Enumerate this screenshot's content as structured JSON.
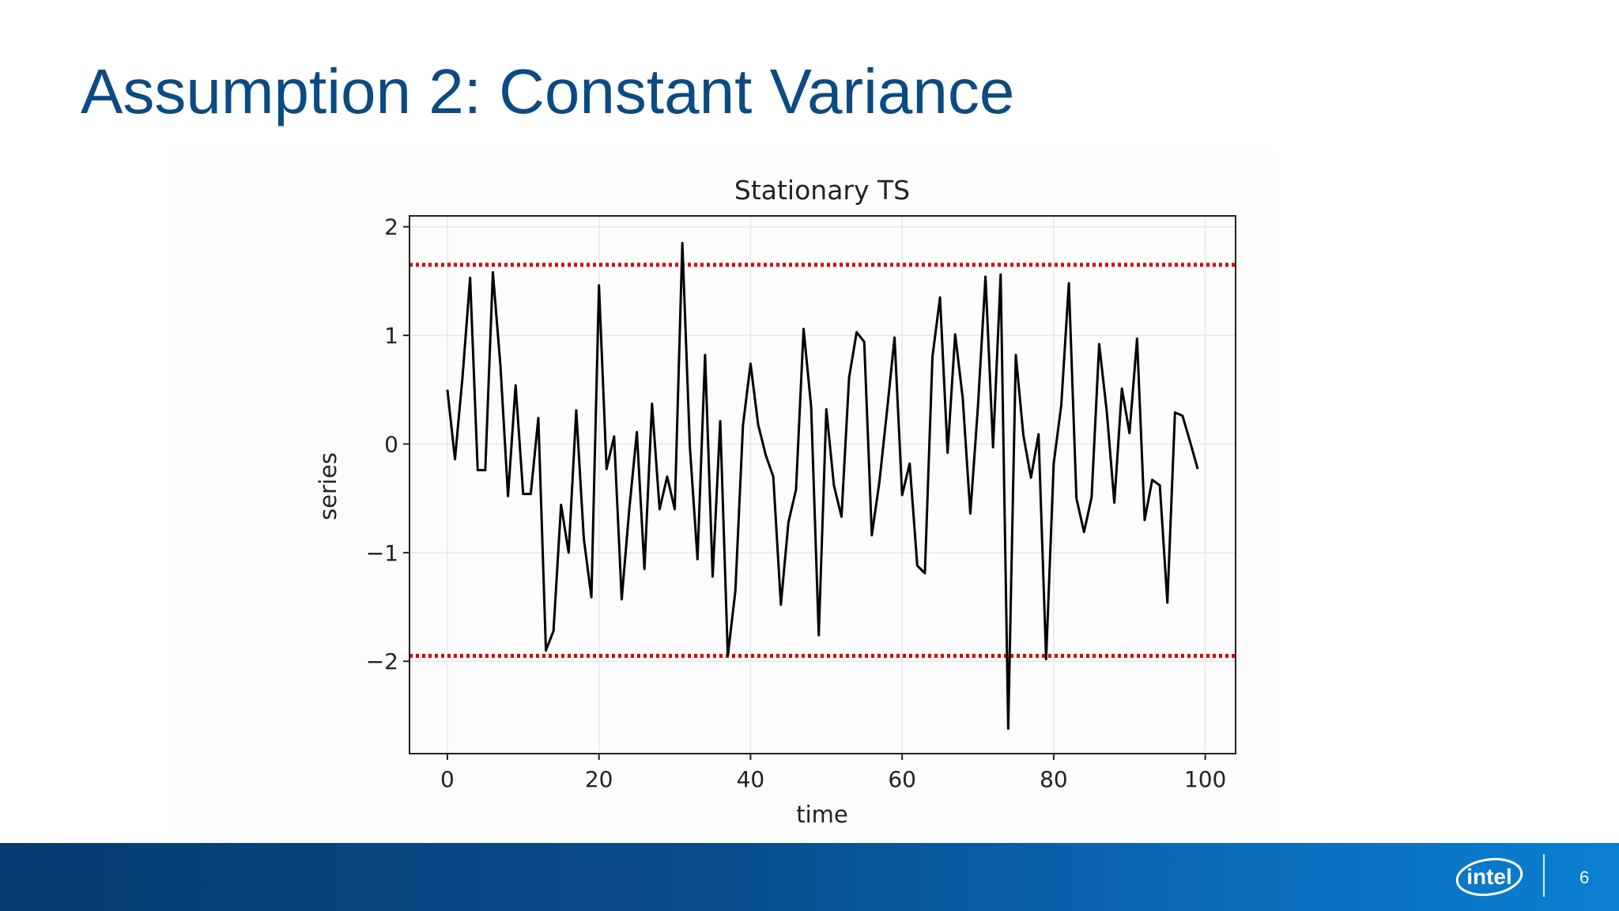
{
  "slide": {
    "title": "Assumption 2: Constant Variance",
    "page_number": "6",
    "logo_text": "intel"
  },
  "colors": {
    "title": "#0b4a82",
    "series_line": "#000000",
    "bound_lines": "#d40000",
    "footer_start": "#063a73",
    "footer_end": "#0b7fd0"
  },
  "chart_data": {
    "type": "line",
    "title": "Stationary TS",
    "xlabel": "time",
    "ylabel": "series",
    "xlim": [
      -5,
      104
    ],
    "ylim": [
      -2.85,
      2.1
    ],
    "xticks": [
      0,
      20,
      40,
      60,
      80,
      100
    ],
    "yticks": [
      2,
      1,
      0,
      -1,
      -2
    ],
    "ytick_labels": [
      "2",
      "1",
      "0",
      "−1",
      "−2"
    ],
    "grid": true,
    "series": [
      {
        "values": [
          0.5,
          -0.14,
          0.62,
          1.53,
          -0.24,
          -0.24,
          1.58,
          0.72,
          -0.48,
          0.54,
          -0.46,
          -0.46,
          0.24,
          -1.9,
          -1.72,
          -0.56,
          -1.0,
          0.31,
          -0.87,
          -1.41,
          1.46,
          -0.23,
          0.07,
          -1.43,
          -0.6,
          0.11,
          -1.15,
          0.37,
          -0.6,
          -0.3,
          -0.6,
          1.85,
          -0.03,
          -1.06,
          0.82,
          -1.22,
          0.21,
          -1.95,
          -1.35,
          0.17,
          0.74,
          0.18,
          -0.1,
          -0.3,
          -1.48,
          -0.72,
          -0.42,
          1.06,
          0.34,
          -1.76,
          0.32,
          -0.38,
          -0.67,
          0.61,
          1.03,
          0.94,
          -0.84,
          -0.35,
          0.3,
          0.98,
          -0.47,
          -0.18,
          -1.12,
          -1.19,
          0.8,
          1.35,
          -0.08,
          1.01,
          0.42,
          -0.64,
          0.34,
          1.54,
          -0.03,
          1.56,
          -2.62,
          0.82,
          0.08,
          -0.31,
          0.09,
          -1.98,
          -0.18,
          0.36,
          1.48,
          -0.5,
          -0.81,
          -0.49,
          0.92,
          0.3,
          -0.54,
          0.51,
          0.1,
          0.97,
          -0.7,
          -0.33,
          -0.38,
          -1.46,
          0.29,
          0.26,
          0.02,
          -0.23
        ]
      }
    ],
    "bounds": [
      1.65,
      -1.95
    ]
  }
}
